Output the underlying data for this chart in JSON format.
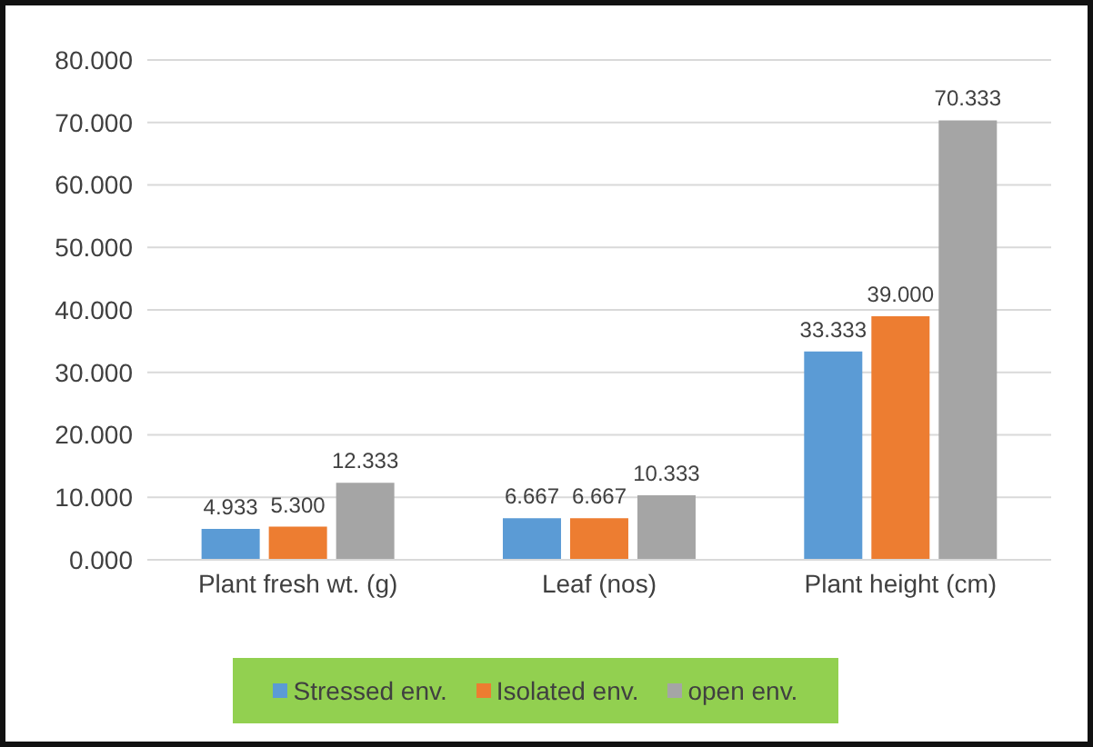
{
  "chart_data": {
    "type": "bar",
    "categories": [
      "Plant fresh wt. (g)",
      "Leaf (nos)",
      "Plant height (cm)"
    ],
    "series": [
      {
        "name": "Stressed env.",
        "color": "#5b9bd5",
        "values": [
          4.933,
          6.667,
          33.333
        ],
        "value_labels": [
          "4.933",
          "6.667",
          "33.333"
        ]
      },
      {
        "name": "Isolated env.",
        "color": "#ed7d31",
        "values": [
          5.3,
          6.667,
          39.0
        ],
        "value_labels": [
          "5.300",
          "6.667",
          "39.000"
        ]
      },
      {
        "name": "open env.",
        "color": "#a5a5a5",
        "values": [
          12.333,
          10.333,
          70.333
        ],
        "value_labels": [
          "12.333",
          "10.333",
          "70.333"
        ]
      }
    ],
    "ylim": [
      0,
      80
    ],
    "yticks": [
      {
        "value": 0,
        "label": "0.000"
      },
      {
        "value": 10,
        "label": "10.000"
      },
      {
        "value": 20,
        "label": "20.000"
      },
      {
        "value": 30,
        "label": "30.000"
      },
      {
        "value": 40,
        "label": "40.000"
      },
      {
        "value": 50,
        "label": "50.000"
      },
      {
        "value": 60,
        "label": "60.000"
      },
      {
        "value": 70,
        "label": "70.000"
      },
      {
        "value": 80,
        "label": "80.000"
      }
    ],
    "grid": "y",
    "legend": "bottom"
  }
}
